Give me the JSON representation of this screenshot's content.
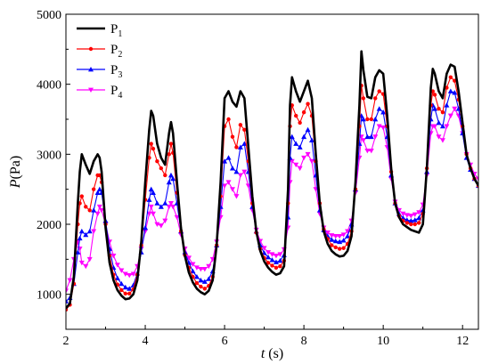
{
  "chart_data": {
    "type": "line",
    "xlabel": "t (s)",
    "xlabel_italic": "t",
    "xlabel_rest": " (s)",
    "ylabel": "P(Pa)",
    "ylabel_italic": "P",
    "ylabel_rest": "(Pa)",
    "xlim": [
      2,
      12.4
    ],
    "ylim": [
      500,
      5000
    ],
    "xticks": [
      2,
      4,
      6,
      8,
      10,
      12
    ],
    "yticks": [
      1000,
      2000,
      3000,
      4000,
      5000
    ],
    "grid": false,
    "legend_position": "top-left",
    "series": [
      {
        "name": "P1",
        "name_main": "P",
        "name_sub": "1",
        "color": "#000000",
        "marker": "none",
        "x": [
          2.0,
          2.1,
          2.2,
          2.3,
          2.35,
          2.4,
          2.5,
          2.6,
          2.7,
          2.8,
          2.85,
          2.9,
          3.0,
          3.1,
          3.2,
          3.3,
          3.4,
          3.5,
          3.6,
          3.7,
          3.8,
          3.9,
          4.0,
          4.1,
          4.15,
          4.2,
          4.3,
          4.4,
          4.5,
          4.6,
          4.65,
          4.7,
          4.8,
          4.9,
          5.0,
          5.1,
          5.2,
          5.3,
          5.4,
          5.5,
          5.6,
          5.7,
          5.8,
          5.9,
          6.0,
          6.1,
          6.2,
          6.3,
          6.4,
          6.5,
          6.6,
          6.7,
          6.8,
          6.9,
          7.0,
          7.1,
          7.2,
          7.3,
          7.4,
          7.5,
          7.6,
          7.65,
          7.7,
          7.8,
          7.9,
          8.0,
          8.1,
          8.2,
          8.3,
          8.4,
          8.5,
          8.6,
          8.7,
          8.8,
          8.9,
          9.0,
          9.1,
          9.2,
          9.3,
          9.4,
          9.45,
          9.5,
          9.6,
          9.7,
          9.8,
          9.9,
          10.0,
          10.1,
          10.2,
          10.3,
          10.4,
          10.5,
          10.6,
          10.7,
          10.8,
          10.9,
          11.0,
          11.1,
          11.2,
          11.25,
          11.3,
          11.4,
          11.5,
          11.6,
          11.7,
          11.8,
          11.9,
          12.0,
          12.1,
          12.2,
          12.3,
          12.4
        ],
        "values": [
          800,
          870,
          1250,
          2300,
          2750,
          3000,
          2850,
          2720,
          2900,
          3000,
          2950,
          2750,
          1950,
          1450,
          1200,
          1060,
          980,
          930,
          940,
          1000,
          1200,
          1750,
          2600,
          3350,
          3620,
          3550,
          3150,
          2950,
          2850,
          3300,
          3460,
          3300,
          2600,
          1950,
          1550,
          1310,
          1170,
          1080,
          1030,
          1000,
          1050,
          1200,
          1700,
          2600,
          3800,
          3900,
          3750,
          3680,
          3900,
          3800,
          3100,
          2400,
          1900,
          1620,
          1470,
          1380,
          1320,
          1280,
          1300,
          1400,
          2500,
          3700,
          4100,
          3900,
          3750,
          3900,
          4050,
          3800,
          3000,
          2300,
          1900,
          1720,
          1620,
          1570,
          1540,
          1550,
          1620,
          1830,
          2600,
          3700,
          4470,
          4200,
          3820,
          3800,
          4100,
          4200,
          4150,
          3550,
          2800,
          2300,
          2100,
          2000,
          1960,
          1920,
          1900,
          1880,
          2000,
          2800,
          3950,
          4220,
          4150,
          3900,
          3800,
          4150,
          4280,
          4250,
          3900,
          3450,
          3000,
          2800,
          2650,
          2550
        ]
      },
      {
        "name": "P2",
        "name_main": "P",
        "name_sub": "2",
        "color": "#ff0000",
        "marker": "circle",
        "x": [
          2.0,
          2.1,
          2.2,
          2.3,
          2.35,
          2.4,
          2.5,
          2.6,
          2.7,
          2.8,
          2.85,
          2.9,
          3.0,
          3.1,
          3.2,
          3.3,
          3.4,
          3.5,
          3.6,
          3.7,
          3.8,
          3.9,
          4.0,
          4.1,
          4.15,
          4.2,
          4.3,
          4.4,
          4.5,
          4.6,
          4.65,
          4.7,
          4.8,
          4.9,
          5.0,
          5.1,
          5.2,
          5.3,
          5.4,
          5.5,
          5.6,
          5.7,
          5.8,
          5.9,
          6.0,
          6.1,
          6.2,
          6.3,
          6.4,
          6.5,
          6.6,
          6.7,
          6.8,
          6.9,
          7.0,
          7.1,
          7.2,
          7.3,
          7.4,
          7.5,
          7.6,
          7.65,
          7.7,
          7.8,
          7.9,
          8.0,
          8.1,
          8.2,
          8.3,
          8.4,
          8.5,
          8.6,
          8.7,
          8.8,
          8.9,
          9.0,
          9.1,
          9.2,
          9.3,
          9.4,
          9.45,
          9.5,
          9.6,
          9.7,
          9.8,
          9.9,
          10.0,
          10.1,
          10.2,
          10.3,
          10.4,
          10.5,
          10.6,
          10.7,
          10.8,
          10.9,
          11.0,
          11.1,
          11.2,
          11.25,
          11.3,
          11.4,
          11.5,
          11.6,
          11.7,
          11.8,
          11.9,
          12.0,
          12.1,
          12.2,
          12.3,
          12.4
        ],
        "values": [
          780,
          850,
          1150,
          2000,
          2300,
          2400,
          2250,
          2200,
          2500,
          2700,
          2700,
          2600,
          2000,
          1550,
          1280,
          1140,
          1060,
          1010,
          1010,
          1070,
          1280,
          1700,
          2350,
          2950,
          3150,
          3080,
          2900,
          2800,
          2700,
          3000,
          3150,
          3020,
          2450,
          1900,
          1560,
          1380,
          1250,
          1160,
          1110,
          1080,
          1120,
          1250,
          1700,
          2400,
          3400,
          3500,
          3250,
          3100,
          3420,
          3350,
          2900,
          2300,
          1880,
          1650,
          1520,
          1450,
          1410,
          1380,
          1400,
          1480,
          2300,
          3400,
          3700,
          3550,
          3450,
          3600,
          3720,
          3550,
          2900,
          2300,
          1930,
          1790,
          1700,
          1670,
          1650,
          1660,
          1720,
          1900,
          2500,
          3400,
          3980,
          3800,
          3500,
          3500,
          3800,
          3900,
          3860,
          3400,
          2750,
          2300,
          2120,
          2050,
          2020,
          2000,
          2000,
          2020,
          2150,
          2800,
          3700,
          3900,
          3850,
          3650,
          3600,
          3950,
          4100,
          4050,
          3780,
          3400,
          3000,
          2800,
          2650,
          2550
        ]
      },
      {
        "name": "P3",
        "name_main": "P",
        "name_sub": "3",
        "color": "#0000ff",
        "marker": "triangle-up",
        "x": [
          2.0,
          2.1,
          2.2,
          2.3,
          2.35,
          2.4,
          2.5,
          2.6,
          2.7,
          2.8,
          2.85,
          2.9,
          3.0,
          3.1,
          3.2,
          3.3,
          3.4,
          3.5,
          3.6,
          3.7,
          3.8,
          3.9,
          4.0,
          4.1,
          4.15,
          4.2,
          4.3,
          4.4,
          4.5,
          4.6,
          4.65,
          4.7,
          4.8,
          4.9,
          5.0,
          5.1,
          5.2,
          5.3,
          5.4,
          5.5,
          5.6,
          5.7,
          5.8,
          5.9,
          6.0,
          6.1,
          6.2,
          6.3,
          6.4,
          6.5,
          6.6,
          6.7,
          6.8,
          6.9,
          7.0,
          7.1,
          7.2,
          7.3,
          7.4,
          7.5,
          7.6,
          7.65,
          7.7,
          7.8,
          7.9,
          8.0,
          8.1,
          8.2,
          8.3,
          8.4,
          8.5,
          8.6,
          8.7,
          8.8,
          8.9,
          9.0,
          9.1,
          9.2,
          9.3,
          9.4,
          9.45,
          9.5,
          9.6,
          9.7,
          9.8,
          9.9,
          10.0,
          10.1,
          10.2,
          10.3,
          10.4,
          10.5,
          10.6,
          10.7,
          10.8,
          10.9,
          11.0,
          11.1,
          11.2,
          11.25,
          11.3,
          11.4,
          11.5,
          11.6,
          11.7,
          11.8,
          11.9,
          12.0,
          12.1,
          12.2,
          12.3,
          12.4
        ],
        "values": [
          900,
          950,
          1150,
          1600,
          1800,
          1900,
          1850,
          1900,
          2200,
          2450,
          2500,
          2450,
          2050,
          1650,
          1380,
          1230,
          1150,
          1100,
          1080,
          1130,
          1300,
          1600,
          1950,
          2350,
          2500,
          2450,
          2300,
          2250,
          2300,
          2600,
          2700,
          2650,
          2300,
          1900,
          1600,
          1450,
          1330,
          1250,
          1200,
          1180,
          1220,
          1330,
          1700,
          2250,
          2900,
          2950,
          2800,
          2750,
          3100,
          3150,
          2750,
          2250,
          1900,
          1700,
          1590,
          1530,
          1490,
          1460,
          1480,
          1560,
          2100,
          2950,
          3250,
          3150,
          3100,
          3250,
          3350,
          3200,
          2700,
          2200,
          1920,
          1830,
          1780,
          1760,
          1750,
          1770,
          1830,
          2000,
          2500,
          3150,
          3550,
          3500,
          3250,
          3250,
          3500,
          3650,
          3600,
          3250,
          2700,
          2300,
          2150,
          2090,
          2060,
          2050,
          2060,
          2090,
          2200,
          2750,
          3500,
          3700,
          3650,
          3450,
          3400,
          3700,
          3900,
          3880,
          3650,
          3300,
          2950,
          2780,
          2650,
          2550
        ]
      },
      {
        "name": "P4",
        "name_main": "P",
        "name_sub": "4",
        "color": "#ff00ff",
        "marker": "triangle-down",
        "x": [
          2.0,
          2.1,
          2.2,
          2.3,
          2.35,
          2.4,
          2.5,
          2.6,
          2.7,
          2.8,
          2.85,
          2.9,
          3.0,
          3.1,
          3.2,
          3.3,
          3.4,
          3.5,
          3.6,
          3.7,
          3.8,
          3.9,
          4.0,
          4.1,
          4.15,
          4.2,
          4.3,
          4.4,
          4.5,
          4.6,
          4.65,
          4.7,
          4.8,
          4.9,
          5.0,
          5.1,
          5.2,
          5.3,
          5.4,
          5.5,
          5.6,
          5.7,
          5.8,
          5.9,
          6.0,
          6.1,
          6.2,
          6.3,
          6.4,
          6.5,
          6.6,
          6.7,
          6.8,
          6.9,
          7.0,
          7.1,
          7.2,
          7.3,
          7.4,
          7.5,
          7.6,
          7.65,
          7.7,
          7.8,
          7.9,
          8.0,
          8.1,
          8.2,
          8.3,
          8.4,
          8.5,
          8.6,
          8.7,
          8.8,
          8.9,
          9.0,
          9.1,
          9.2,
          9.3,
          9.4,
          9.45,
          9.5,
          9.6,
          9.7,
          9.8,
          9.9,
          10.0,
          10.1,
          10.2,
          10.3,
          10.4,
          10.5,
          10.6,
          10.7,
          10.8,
          10.9,
          11.0,
          11.1,
          11.2,
          11.25,
          11.3,
          11.4,
          11.5,
          11.6,
          11.7,
          11.8,
          11.9,
          12.0,
          12.1,
          12.2,
          12.3,
          12.4
        ],
        "values": [
          1050,
          1200,
          1500,
          1750,
          1650,
          1450,
          1400,
          1500,
          1900,
          2150,
          2250,
          2200,
          2000,
          1750,
          1550,
          1420,
          1340,
          1290,
          1270,
          1290,
          1400,
          1650,
          1900,
          2150,
          2250,
          2150,
          2000,
          1980,
          2050,
          2250,
          2300,
          2250,
          2100,
          1850,
          1650,
          1520,
          1430,
          1380,
          1360,
          1360,
          1400,
          1500,
          1750,
          2100,
          2550,
          2600,
          2500,
          2400,
          2700,
          2750,
          2550,
          2200,
          1920,
          1760,
          1660,
          1600,
          1570,
          1550,
          1570,
          1640,
          1950,
          2600,
          2900,
          2850,
          2800,
          2950,
          3000,
          2900,
          2500,
          2150,
          1950,
          1880,
          1840,
          1830,
          1830,
          1850,
          1900,
          2050,
          2450,
          2950,
          3250,
          3200,
          3050,
          3050,
          3250,
          3400,
          3380,
          3100,
          2650,
          2320,
          2200,
          2150,
          2130,
          2120,
          2140,
          2170,
          2280,
          2700,
          3300,
          3400,
          3400,
          3250,
          3200,
          3400,
          3550,
          3650,
          3550,
          3300,
          3000,
          2850,
          2720,
          2650
        ]
      }
    ]
  }
}
